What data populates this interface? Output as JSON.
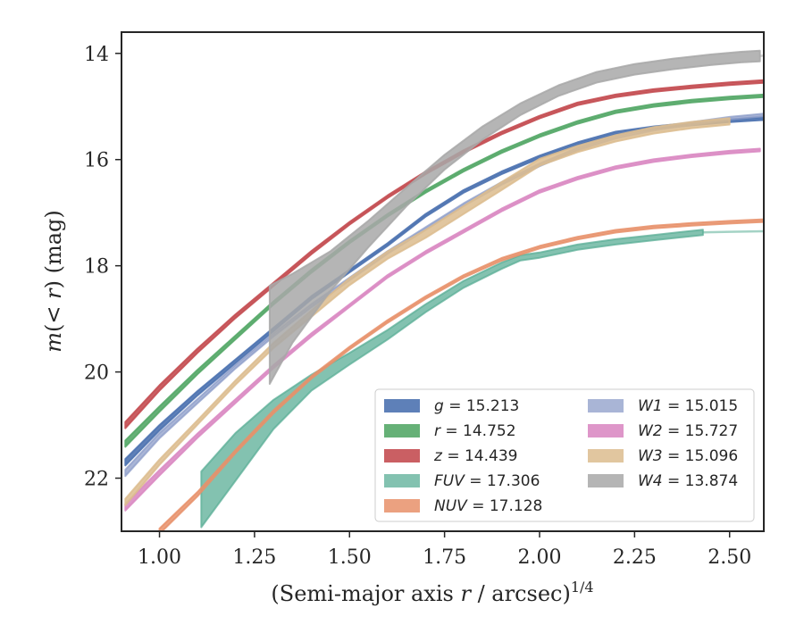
{
  "chart_data": {
    "type": "line",
    "xlabel": "(Semi-major axis r / arcsec)",
    "xlabel_main": "(Semi-major axis ",
    "xlabel_var": "r",
    "xlabel_rest": " / arcsec)",
    "xlabel_sup": "1/4",
    "ylabel": "m(< r) (mag)",
    "ylabel_main": "m",
    "ylabel_mid": "(< ",
    "ylabel_var": "r",
    "ylabel_end": ") (mag)",
    "xlim": [
      0.9,
      2.59
    ],
    "ylim": [
      23.0,
      13.6
    ],
    "y_inverted": true,
    "grid": false,
    "legend_position": "lower-right",
    "x_ticks": [
      1.0,
      1.25,
      1.5,
      1.75,
      2.0,
      2.25,
      2.5
    ],
    "x_tick_labels": [
      "1.00",
      "1.25",
      "1.50",
      "1.75",
      "2.00",
      "2.25",
      "2.50"
    ],
    "y_ticks": [
      14,
      16,
      18,
      20,
      22
    ],
    "y_tick_labels": [
      "14",
      "16",
      "18",
      "20",
      "22"
    ],
    "series": [
      {
        "name": "g = 15.213",
        "band": "g",
        "value": "15.213",
        "color": "#4c72b0",
        "alpha": 0.9,
        "x": [
          0.91,
          1.0,
          1.1,
          1.2,
          1.3,
          1.4,
          1.5,
          1.6,
          1.7,
          1.8,
          1.9,
          2.0,
          2.1,
          2.2,
          2.3,
          2.4,
          2.5,
          2.59
        ],
        "y": [
          21.7,
          21.05,
          20.4,
          19.8,
          19.2,
          18.6,
          18.1,
          17.6,
          17.05,
          16.6,
          16.25,
          15.95,
          15.7,
          15.5,
          15.4,
          15.33,
          15.27,
          15.23
        ],
        "width": [
          0.12,
          0.1,
          0.08,
          0.07,
          0.06,
          0.06,
          0.05,
          0.05,
          0.05,
          0.05,
          0.05,
          0.05,
          0.05,
          0.05,
          0.05,
          0.05,
          0.05,
          0.05
        ]
      },
      {
        "name": "r = 14.752",
        "band": "r",
        "value": "14.752",
        "color": "#55a868",
        "alpha": 0.9,
        "x": [
          0.91,
          1.0,
          1.1,
          1.2,
          1.3,
          1.4,
          1.5,
          1.6,
          1.7,
          1.8,
          1.9,
          2.0,
          2.1,
          2.2,
          2.3,
          2.4,
          2.5,
          2.59
        ],
        "y": [
          21.35,
          20.7,
          20.0,
          19.35,
          18.7,
          18.1,
          17.55,
          17.05,
          16.6,
          16.2,
          15.85,
          15.55,
          15.3,
          15.1,
          14.98,
          14.9,
          14.84,
          14.8
        ],
        "width": [
          0.12,
          0.1,
          0.08,
          0.07,
          0.06,
          0.06,
          0.05,
          0.05,
          0.05,
          0.05,
          0.05,
          0.05,
          0.05,
          0.05,
          0.05,
          0.05,
          0.05,
          0.05
        ]
      },
      {
        "name": "z = 14.439",
        "band": "z",
        "value": "14.439",
        "color": "#c44e52",
        "alpha": 0.9,
        "x": [
          0.91,
          1.0,
          1.1,
          1.2,
          1.3,
          1.4,
          1.5,
          1.6,
          1.7,
          1.8,
          1.9,
          2.0,
          2.1,
          2.2,
          2.3,
          2.4,
          2.5,
          2.59
        ],
        "y": [
          21.0,
          20.3,
          19.6,
          18.95,
          18.35,
          17.75,
          17.2,
          16.7,
          16.25,
          15.85,
          15.5,
          15.2,
          14.95,
          14.8,
          14.7,
          14.63,
          14.57,
          14.53
        ],
        "width": [
          0.12,
          0.1,
          0.08,
          0.07,
          0.06,
          0.06,
          0.05,
          0.05,
          0.05,
          0.05,
          0.05,
          0.05,
          0.05,
          0.05,
          0.05,
          0.05,
          0.05,
          0.05
        ]
      },
      {
        "name": "FUV = 17.306",
        "band": "FUV",
        "value": "17.306",
        "color": "#5aae96",
        "alpha": 0.75,
        "x": [
          1.11,
          1.2,
          1.3,
          1.4,
          1.5,
          1.6,
          1.7,
          1.8,
          1.9,
          1.95,
          2.0,
          2.1,
          2.2,
          2.3,
          2.43
        ],
        "y": [
          22.4,
          21.6,
          20.8,
          20.2,
          19.75,
          19.3,
          18.8,
          18.35,
          18.0,
          17.85,
          17.8,
          17.65,
          17.55,
          17.47,
          17.37
        ],
        "width": [
          1.05,
          0.9,
          0.55,
          0.3,
          0.22,
          0.18,
          0.15,
          0.13,
          0.12,
          0.1,
          0.1,
          0.1,
          0.1,
          0.1,
          0.1
        ],
        "ext_x": [
          2.43,
          2.5,
          2.59
        ],
        "ext_y": [
          17.37,
          17.36,
          17.35
        ]
      },
      {
        "name": "NUV = 17.128",
        "band": "NUV",
        "value": "17.128",
        "color": "#e8916a",
        "alpha": 0.85,
        "x": [
          1.0,
          1.1,
          1.2,
          1.3,
          1.4,
          1.5,
          1.6,
          1.7,
          1.8,
          1.9,
          2.0,
          2.1,
          2.2,
          2.3,
          2.4,
          2.5,
          2.59
        ],
        "y": [
          23.0,
          22.3,
          21.5,
          20.75,
          20.1,
          19.55,
          19.05,
          18.6,
          18.2,
          17.88,
          17.65,
          17.48,
          17.35,
          17.27,
          17.22,
          17.18,
          17.15
        ],
        "width": [
          0.1,
          0.08,
          0.06,
          0.06,
          0.05,
          0.05,
          0.05,
          0.05,
          0.05,
          0.05,
          0.05,
          0.05,
          0.05,
          0.05,
          0.05,
          0.05,
          0.05
        ]
      },
      {
        "name": "W1 = 15.015",
        "band": "W1",
        "value": "15.015",
        "color": "#8c9cc8",
        "alpha": 0.75,
        "x": [
          0.91,
          1.0,
          1.1,
          1.2,
          1.3,
          1.4,
          1.5,
          1.6,
          1.7,
          1.8,
          1.9,
          2.0,
          2.1,
          2.2,
          2.3,
          2.4,
          2.5,
          2.59
        ],
        "y": [
          21.9,
          21.2,
          20.55,
          19.9,
          19.3,
          18.75,
          18.25,
          17.75,
          17.3,
          16.85,
          16.45,
          16.1,
          15.8,
          15.58,
          15.43,
          15.32,
          15.22,
          15.16
        ],
        "width": [
          0.12,
          0.1,
          0.08,
          0.07,
          0.06,
          0.06,
          0.05,
          0.05,
          0.05,
          0.05,
          0.05,
          0.05,
          0.05,
          0.05,
          0.05,
          0.05,
          0.05,
          0.05
        ]
      },
      {
        "name": "W2 = 15.727",
        "band": "W2",
        "value": "15.727",
        "color": "#da8bc3",
        "alpha": 0.9,
        "x": [
          0.91,
          1.0,
          1.1,
          1.2,
          1.3,
          1.4,
          1.5,
          1.6,
          1.7,
          1.8,
          1.9,
          2.0,
          2.1,
          2.2,
          2.3,
          2.4,
          2.5,
          2.58
        ],
        "y": [
          22.55,
          21.9,
          21.2,
          20.55,
          19.9,
          19.3,
          18.75,
          18.2,
          17.75,
          17.35,
          16.95,
          16.6,
          16.35,
          16.15,
          16.02,
          15.93,
          15.86,
          15.82
        ],
        "width": [
          0.12,
          0.1,
          0.08,
          0.07,
          0.06,
          0.06,
          0.05,
          0.05,
          0.05,
          0.05,
          0.05,
          0.05,
          0.05,
          0.05,
          0.05,
          0.05,
          0.05,
          0.05
        ]
      },
      {
        "name": "W3 = 15.096",
        "band": "W3",
        "value": "15.096",
        "color": "#dcbc8e",
        "alpha": 0.85,
        "x": [
          0.91,
          1.0,
          1.1,
          1.2,
          1.3,
          1.4,
          1.5,
          1.6,
          1.7,
          1.8,
          1.9,
          2.0,
          2.1,
          2.2,
          2.3,
          2.4,
          2.5
        ],
        "y": [
          22.45,
          21.7,
          20.95,
          20.2,
          19.5,
          18.9,
          18.3,
          17.8,
          17.4,
          16.95,
          16.5,
          16.05,
          15.8,
          15.6,
          15.45,
          15.35,
          15.28
        ],
        "width": [
          0.12,
          0.1,
          0.08,
          0.08,
          0.1,
          0.12,
          0.13,
          0.14,
          0.15,
          0.15,
          0.15,
          0.13,
          0.12,
          0.12,
          0.12,
          0.12,
          0.12
        ]
      },
      {
        "name": "W4 = 13.874",
        "band": "W4",
        "value": "13.874",
        "color": "#a8a8a8",
        "alpha": 0.85,
        "x": [
          1.29,
          1.35,
          1.45,
          1.55,
          1.65,
          1.75,
          1.85,
          1.95,
          2.05,
          2.15,
          2.25,
          2.35,
          2.45,
          2.53,
          2.58
        ],
        "y": [
          19.3,
          18.8,
          18.1,
          17.4,
          16.7,
          16.05,
          15.5,
          15.05,
          14.7,
          14.45,
          14.3,
          14.2,
          14.12,
          14.07,
          14.05
        ],
        "width": [
          1.85,
          1.3,
          0.75,
          0.5,
          0.35,
          0.28,
          0.25,
          0.22,
          0.2,
          0.2,
          0.2,
          0.2,
          0.2,
          0.2,
          0.2
        ],
        "ext_x": [
          2.58,
          2.59
        ],
        "ext_y": [
          14.05,
          14.04
        ]
      }
    ]
  }
}
